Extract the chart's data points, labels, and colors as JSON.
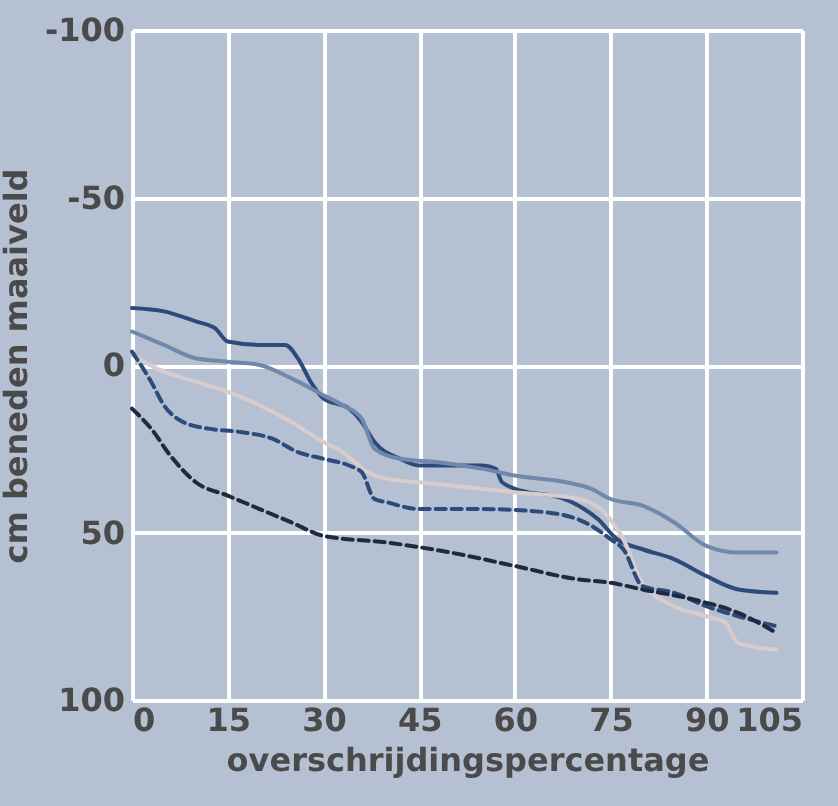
{
  "chart_data": {
    "type": "line",
    "xlabel": "overschrijdingspercentage",
    "ylabel": "cm beneden maaiveld",
    "xlim": [
      0,
      105
    ],
    "xticks": [
      0,
      15,
      30,
      45,
      60,
      75,
      90,
      105
    ],
    "ylim": [
      100,
      -100
    ],
    "yticks": [
      -100,
      -50,
      0,
      50,
      100
    ],
    "grid": true,
    "marker": "none",
    "series": [
      {
        "color": "#2e4a7a",
        "line_style": "solid",
        "x": [
          0,
          5,
          10,
          13,
          15,
          20,
          24,
          26,
          28,
          30,
          34,
          36,
          38,
          42,
          45,
          50,
          55,
          57,
          58,
          62,
          66,
          70,
          73,
          76,
          80,
          85,
          90,
          95,
          101
        ],
        "values": [
          -17,
          -16,
          -13,
          -11,
          -7,
          -6,
          -6,
          -2,
          5,
          10,
          13,
          17,
          23,
          28,
          30,
          30,
          30,
          31,
          35,
          38,
          39,
          42,
          46,
          52,
          55,
          58,
          63,
          67,
          68
        ]
      },
      {
        "color": "#7088aa",
        "line_style": "solid",
        "x": [
          0,
          5,
          10,
          15,
          20,
          25,
          30,
          33,
          36,
          38,
          42,
          48,
          55,
          60,
          68,
          72,
          75,
          80,
          85,
          90,
          95,
          101
        ],
        "values": [
          -10,
          -6,
          -2,
          -1,
          0,
          4,
          9,
          12,
          16,
          25,
          28,
          29,
          31,
          33,
          35,
          37,
          40,
          42,
          47,
          54,
          56,
          56
        ]
      },
      {
        "color": "#d9cccc",
        "line_style": "solid",
        "x": [
          0,
          5,
          10,
          15,
          20,
          25,
          30,
          33,
          37,
          40,
          45,
          55,
          60,
          70,
          74,
          77,
          80,
          85,
          90,
          93,
          95,
          101
        ],
        "values": [
          -3,
          2,
          5,
          8,
          12,
          17,
          23,
          26,
          32,
          34,
          35,
          37,
          38,
          40,
          44,
          52,
          65,
          72,
          75,
          77,
          83,
          85
        ]
      },
      {
        "color": "#2e4a7a",
        "line_style": "dashed",
        "x": [
          0,
          3,
          5,
          8,
          12,
          17,
          22,
          26,
          30,
          34,
          36,
          38,
          40,
          45,
          55,
          65,
          72,
          75,
          77,
          80,
          85,
          90,
          95,
          101
        ],
        "values": [
          -4,
          5,
          12,
          17,
          19,
          20,
          22,
          26,
          28,
          30,
          32,
          40,
          41,
          43,
          43,
          44,
          48,
          52,
          55,
          66,
          68,
          72,
          75,
          78
        ]
      },
      {
        "color": "#1e2a40",
        "line_style": "dashed",
        "x": [
          0,
          3,
          6,
          10,
          15,
          20,
          25,
          30,
          40,
          50,
          60,
          70,
          75,
          80,
          88,
          95,
          101
        ],
        "values": [
          13,
          19,
          27,
          35,
          39,
          43,
          47,
          51,
          53,
          56,
          60,
          64,
          65,
          67,
          70,
          74,
          80
        ]
      }
    ]
  }
}
